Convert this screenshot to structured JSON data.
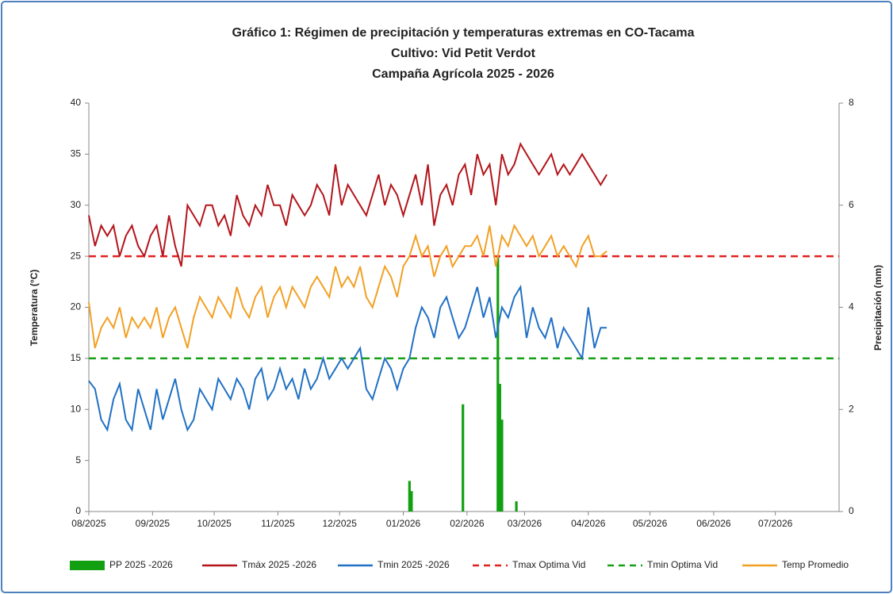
{
  "chart_data": {
    "type": "line",
    "title": [
      "Gráfico 1:  Régimen de precipitación y temperaturas extremas en CO-Tacama",
      "Cultivo: Vid Petit Verdot",
      "Campaña Agrícola 2025 - 2026"
    ],
    "ylabel": "Temperatura (°C)",
    "y2label": "Precipitación (mm)",
    "xlim": [
      0,
      365
    ],
    "xticks": [
      {
        "value": 0,
        "label": "08/2025"
      },
      {
        "value": 31,
        "label": "09/2025"
      },
      {
        "value": 61,
        "label": "10/2025"
      },
      {
        "value": 92,
        "label": "11/2025"
      },
      {
        "value": 122,
        "label": "12/2025"
      },
      {
        "value": 153,
        "label": "01/2026"
      },
      {
        "value": 184,
        "label": "02/2026"
      },
      {
        "value": 212,
        "label": "03/2026"
      },
      {
        "value": 243,
        "label": "04/2026"
      },
      {
        "value": 273,
        "label": "05/2026"
      },
      {
        "value": 304,
        "label": "06/2026"
      },
      {
        "value": 334,
        "label": "07/2026"
      }
    ],
    "ylim": [
      0,
      40
    ],
    "yticks": [
      0,
      5,
      10,
      15,
      20,
      25,
      30,
      35,
      40
    ],
    "y2lim": [
      0,
      8
    ],
    "y2ticks": [
      0,
      2,
      4,
      6,
      8
    ],
    "x": [
      0,
      3,
      6,
      9,
      12,
      15,
      18,
      21,
      24,
      27,
      30,
      33,
      36,
      39,
      42,
      45,
      48,
      51,
      54,
      57,
      60,
      63,
      66,
      69,
      72,
      75,
      78,
      81,
      84,
      87,
      90,
      93,
      96,
      99,
      102,
      105,
      108,
      111,
      114,
      117,
      120,
      123,
      126,
      129,
      132,
      135,
      138,
      141,
      144,
      147,
      150,
      153,
      156,
      159,
      162,
      165,
      168,
      171,
      174,
      177,
      180,
      183,
      186,
      189,
      192,
      195,
      198,
      201,
      204,
      207,
      210,
      213,
      216,
      219,
      222,
      225,
      228,
      231,
      234,
      237,
      240,
      243,
      246,
      249,
      252
    ],
    "series": [
      {
        "name": "PP 2025 -2026",
        "kind": "bar",
        "axis": "y2",
        "color": "#12a012",
        "x": [
          156,
          157,
          182,
          199,
          200,
          201,
          208
        ],
        "values": [
          0.6,
          0.4,
          2.1,
          5.0,
          2.5,
          1.8,
          0.2
        ]
      },
      {
        "name": "Tmáx 2025 -2026",
        "kind": "line",
        "color": "#b3151b",
        "values": [
          29,
          26,
          28,
          27,
          28,
          25,
          27,
          28,
          26,
          25,
          27,
          28,
          25,
          29,
          26,
          24,
          30,
          29,
          28,
          30,
          30,
          28,
          29,
          27,
          31,
          29,
          28,
          30,
          29,
          32,
          30,
          30,
          28,
          31,
          30,
          29,
          30,
          32,
          31,
          29,
          34,
          30,
          32,
          31,
          30,
          29,
          31,
          33,
          30,
          32,
          31,
          29,
          31,
          33,
          30,
          34,
          28,
          31,
          32,
          30,
          33,
          34,
          31,
          35,
          33,
          34,
          30,
          35,
          33,
          34,
          36,
          35,
          34,
          33,
          34,
          35,
          33,
          34,
          33,
          34,
          35,
          34,
          33,
          32,
          33
        ]
      },
      {
        "name": "Tmin 2025 -2026",
        "kind": "line",
        "color": "#2070c4",
        "values": [
          12.8,
          12,
          9,
          8,
          11,
          12.5,
          9,
          8,
          12,
          10,
          8,
          12,
          9,
          11,
          13,
          10,
          8,
          9,
          12,
          11,
          10,
          13,
          12,
          11,
          13,
          12,
          10,
          13,
          14,
          11,
          12,
          14,
          12,
          13,
          11,
          14,
          12,
          13,
          15,
          13,
          14,
          15,
          14,
          15,
          16,
          12,
          11,
          13,
          15,
          14,
          12,
          14,
          15,
          18,
          20,
          19,
          17,
          20,
          21,
          19,
          17,
          18,
          20,
          22,
          19,
          21,
          17,
          20,
          19,
          21,
          22,
          17,
          20,
          18,
          17,
          19,
          16,
          18,
          17,
          16,
          15,
          20,
          16,
          18,
          18
        ]
      },
      {
        "name": "Tmax Optima Vid",
        "kind": "hline",
        "dash": true,
        "color": "#e0201f",
        "value": 25
      },
      {
        "name": "Tmin Optima Vid",
        "kind": "hline",
        "dash": true,
        "color": "#16a016",
        "value": 15
      },
      {
        "name": "Temp Promedio",
        "kind": "line",
        "color": "#f2a024",
        "values": [
          20.5,
          16,
          18,
          19,
          18,
          20,
          17,
          19,
          18,
          19,
          18,
          20,
          17,
          19,
          20,
          18,
          16,
          19,
          21,
          20,
          19,
          21,
          20,
          19,
          22,
          20,
          19,
          21,
          22,
          19,
          21,
          22,
          20,
          22,
          21,
          20,
          22,
          23,
          22,
          21,
          24,
          22,
          23,
          22,
          24,
          21,
          20,
          22,
          24,
          23,
          21,
          24,
          25,
          27,
          25,
          26,
          23,
          25,
          26,
          24,
          25,
          26,
          26,
          27,
          25,
          28,
          24,
          27,
          26,
          28,
          27,
          26,
          27,
          25,
          26,
          27,
          25,
          26,
          25,
          24,
          26,
          27,
          25,
          25,
          25.5
        ]
      }
    ]
  }
}
